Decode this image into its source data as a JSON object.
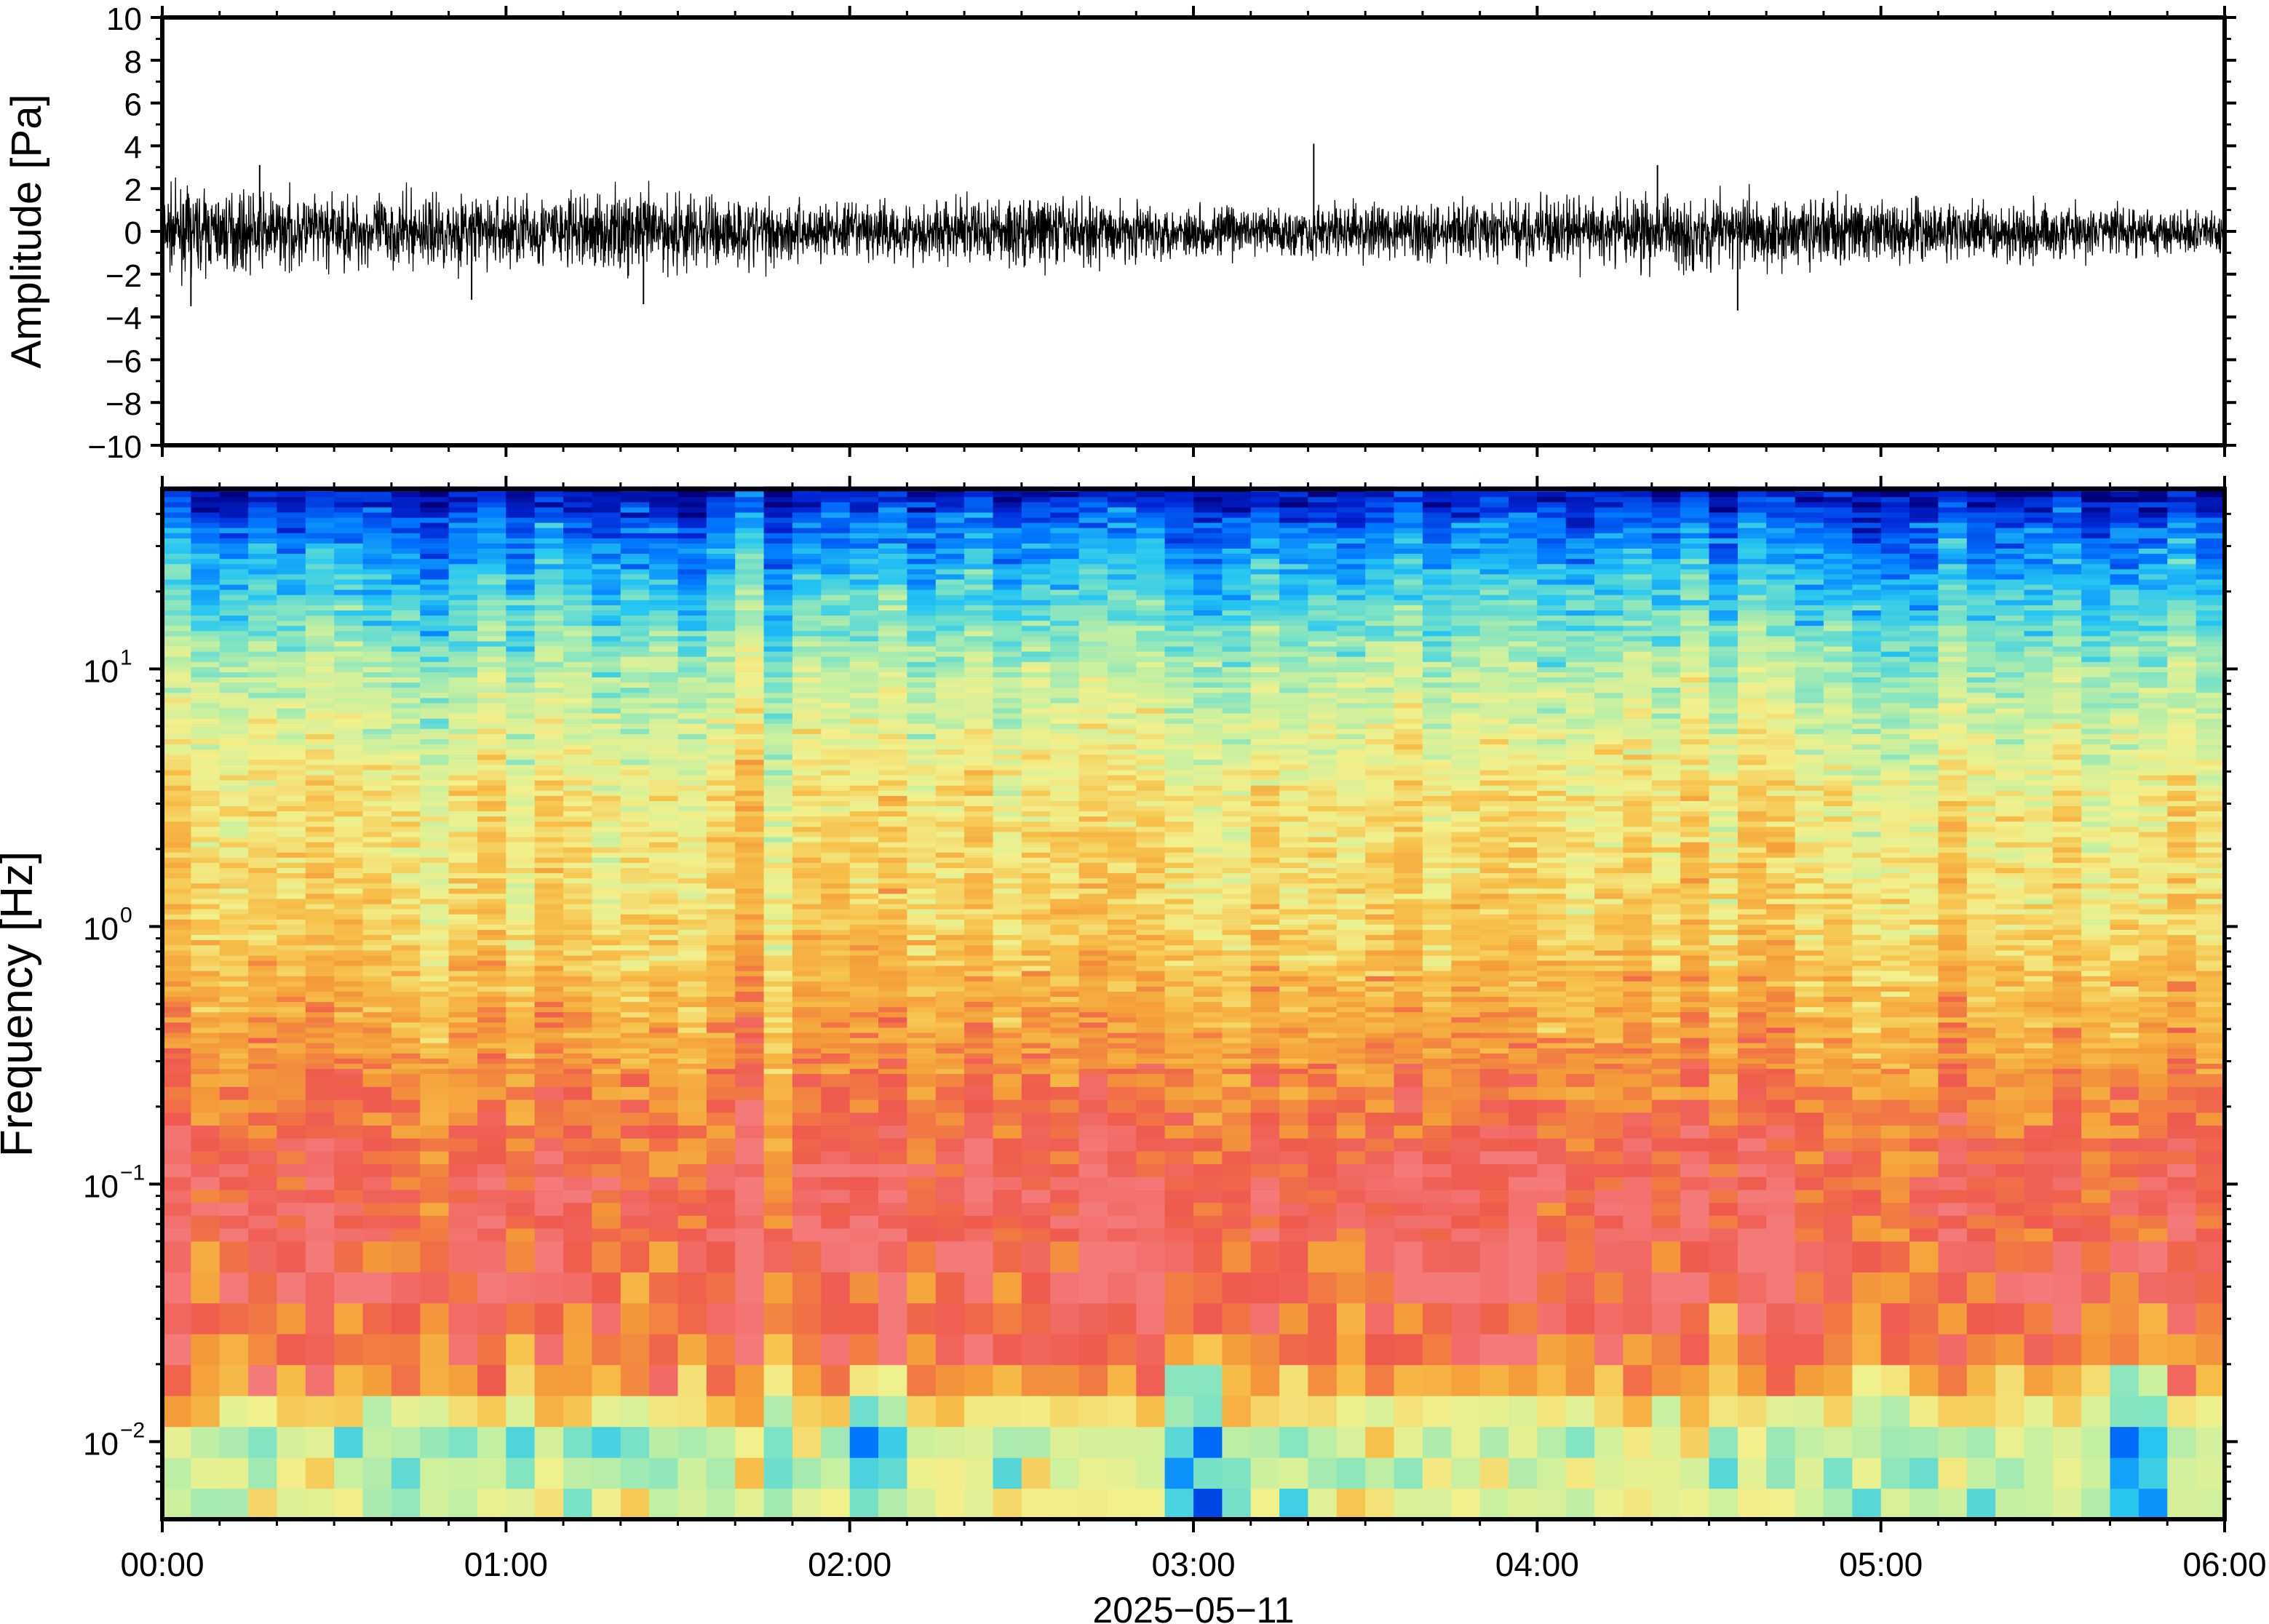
{
  "chart_data": [
    {
      "type": "line",
      "ylabel": "Amplitude [Pa]",
      "ylim": [
        -10,
        10
      ],
      "yticks": [
        -10,
        -8,
        -6,
        -4,
        -2,
        0,
        2,
        4,
        6,
        8,
        10
      ],
      "ytick_labels": [
        "−10",
        "−8",
        "−6",
        "−4",
        "−2",
        "0",
        "2",
        "4",
        "6",
        "8",
        "10"
      ],
      "xlim": [
        "00:00",
        "06:00"
      ],
      "series": [
        {
          "color": "#000000",
          "envelope_hours": [
            0,
            0.5,
            1,
            1.5,
            2,
            2.5,
            3,
            3.5,
            4,
            4.5,
            5,
            5.5,
            6
          ],
          "envelope_amplitude": [
            1.4,
            1.3,
            1.3,
            1.5,
            1.0,
            1.3,
            0.9,
            1.0,
            1.1,
            1.4,
            1.1,
            1.0,
            0.8
          ],
          "spikes": [
            {
              "time": "00:05",
              "value": -3.5
            },
            {
              "time": "00:17",
              "value": 3.1
            },
            {
              "time": "00:54",
              "value": -3.2
            },
            {
              "time": "01:24",
              "value": -3.4
            },
            {
              "time": "03:21",
              "value": 4.1
            },
            {
              "time": "04:21",
              "value": 3.1
            },
            {
              "time": "04:35",
              "value": -3.7
            }
          ]
        }
      ]
    },
    {
      "type": "heatmap",
      "ylabel": "Frequency [Hz]",
      "yscale": "log",
      "ylim": [
        0.005,
        50
      ],
      "yticks": [
        0.01,
        0.1,
        1,
        10
      ],
      "ytick_labels": [
        {
          "base": "10",
          "exp": "−2"
        },
        {
          "base": "10",
          "exp": "−1"
        },
        {
          "base": "10",
          "exp": "0"
        },
        {
          "base": "10",
          "exp": "1"
        }
      ],
      "xlabel": "2025−05−11",
      "xlim": [
        "00:00",
        "06:00"
      ],
      "xtick_labels": [
        "00:00",
        "01:00",
        "02:00",
        "03:00",
        "04:00",
        "05:00",
        "06:00"
      ],
      "colormap": [
        "#00007f",
        "#0028d8",
        "#0078ff",
        "#26c6f2",
        "#7ee3c4",
        "#c8f0a0",
        "#f2f08c",
        "#f7c04a",
        "#f49b3a",
        "#ef5a4e",
        "#f47a7a"
      ],
      "profile_log10_frequency": [
        -2.3,
        -2.0,
        -1.7,
        -1.4,
        -1.0,
        -0.5,
        0.0,
        0.5,
        1.0,
        1.3,
        1.55,
        1.7
      ],
      "profile_color_index": [
        5.6,
        5.0,
        8.5,
        9.3,
        9.3,
        8.0,
        6.7,
        6.3,
        4.8,
        3.3,
        2.0,
        0.4
      ],
      "notable_columns": [
        {
          "time": "02:05",
          "feature": "cyan low-frequency patch"
        },
        {
          "time": "03:00",
          "feature": "cyan low-frequency patch"
        },
        {
          "time": "05:45",
          "feature": "cyan low-frequency patch"
        }
      ]
    }
  ]
}
